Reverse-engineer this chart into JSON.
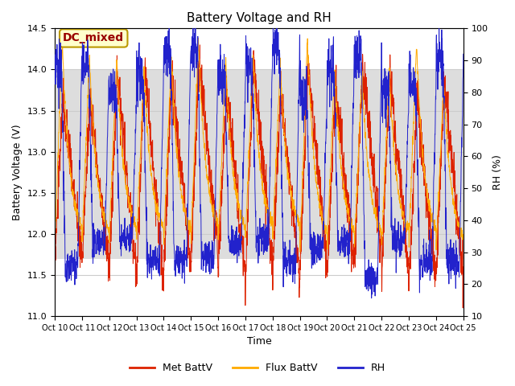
{
  "title": "Battery Voltage and RH",
  "xlabel": "Time",
  "ylabel_left": "Battery Voltage (V)",
  "ylabel_right": "RH (%)",
  "annotation": "DC_mixed",
  "ylim_left": [
    11.0,
    14.5
  ],
  "ylim_right": [
    10,
    100
  ],
  "yticks_left": [
    11.0,
    11.5,
    12.0,
    12.5,
    13.0,
    13.5,
    14.0,
    14.5
  ],
  "yticks_right": [
    10,
    20,
    30,
    40,
    50,
    60,
    70,
    80,
    90,
    100
  ],
  "shaded_region_v": [
    11.7,
    14.0
  ],
  "x_tick_labels": [
    "Oct 10",
    "Oct 11",
    "Oct 12",
    "Oct 13",
    "Oct 14",
    "Oct 15",
    "Oct 16",
    "Oct 17",
    "Oct 18",
    "Oct 19",
    "Oct 20",
    "Oct 21",
    "Oct 22",
    "Oct 23",
    "Oct 24",
    "Oct 25"
  ],
  "color_met": "#dd2200",
  "color_flux": "#ffaa00",
  "color_rh": "#2222cc",
  "legend_labels": [
    "Met BattV",
    "Flux BattV",
    "RH"
  ],
  "background_color": "#ffffff",
  "plot_bg_color": "#ffffff",
  "shaded_color": "#dddddd",
  "grid_color": "#cccccc",
  "annotation_bg": "#ffffcc",
  "annotation_border": "#bb9900",
  "annotation_text_color": "#990000",
  "n_days": 15,
  "pts_per_day": 144
}
